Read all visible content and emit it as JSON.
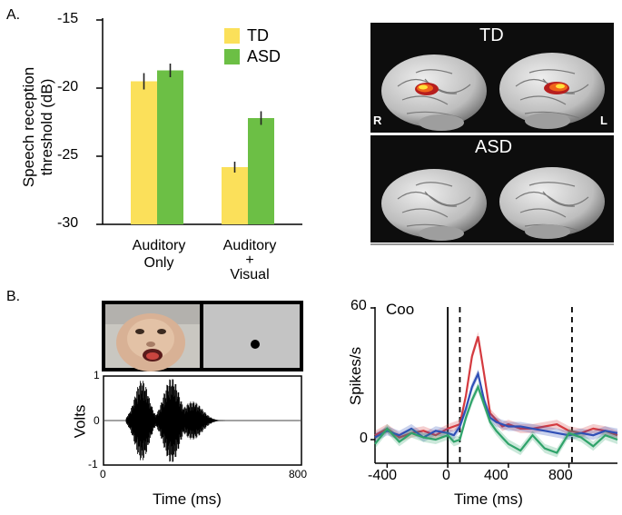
{
  "panelA": {
    "label": "A.",
    "bar_chart": {
      "type": "bar",
      "ylabel_line1": "Speech reception",
      "ylabel_line2": "threshold (dB)",
      "ylim": [
        -30,
        -15
      ],
      "yticks": [
        "-15",
        "-20",
        "-25",
        "-30"
      ],
      "categories": [
        {
          "line1": "Auditory",
          "line2": "Only",
          "line3": ""
        },
        {
          "line1": "Auditory",
          "line2": "+",
          "line3": "Visual"
        }
      ],
      "legend": [
        {
          "name": "TD",
          "color": "#fbe05a"
        },
        {
          "name": "ASD",
          "color": "#6cbf45"
        }
      ]
    },
    "brain_panels": {
      "td_label": "TD",
      "asd_label": "ASD",
      "right_marker": "R",
      "left_marker": "L"
    }
  },
  "panelB": {
    "label": "B.",
    "waveform": {
      "ylabel": "Volts",
      "yticks": [
        "1",
        "0",
        "-1"
      ],
      "xticks": [
        "0",
        "800"
      ],
      "xlabel": "Time (ms)"
    },
    "psth": {
      "title": "Coo",
      "ylabel": "Spikes/s",
      "yticks": [
        "60",
        "0"
      ],
      "xticks": [
        "-400",
        "0",
        "400",
        "800"
      ],
      "xlabel": "Time (ms)"
    }
  },
  "chart_data": [
    {
      "type": "bar",
      "categories": [
        "Auditory Only",
        "Auditory + Visual"
      ],
      "series": [
        {
          "name": "TD",
          "values": [
            -19.5,
            -25.8
          ],
          "errors": [
            0.6,
            0.4
          ]
        },
        {
          "name": "ASD",
          "values": [
            -18.7,
            -22.2
          ],
          "errors": [
            0.5,
            0.5
          ]
        }
      ],
      "xlabel": "",
      "ylabel": "Speech reception threshold (dB)",
      "ylim": [
        -30,
        -15
      ],
      "legend_position": "top-right"
    },
    {
      "type": "line",
      "title": "Coo",
      "xlabel": "Time (ms)",
      "ylabel": "Spikes/s",
      "xlim": [
        -480,
        1120
      ],
      "ylim": [
        -8,
        60
      ],
      "vlines": [
        0,
        80,
        820
      ],
      "series": [
        {
          "color": "#d43a3f",
          "x": [
            -480,
            -400,
            -320,
            -240,
            -160,
            -80,
            0,
            40,
            80,
            120,
            160,
            200,
            240,
            280,
            320,
            360,
            400,
            480,
            560,
            640,
            720,
            800,
            880,
            960,
            1040,
            1120
          ],
          "y": [
            2,
            5,
            1,
            3,
            4,
            2,
            5,
            6,
            7,
            20,
            38,
            47,
            30,
            12,
            9,
            6,
            7,
            5,
            5,
            6,
            7,
            4,
            3,
            5,
            4,
            2
          ]
        },
        {
          "color": "#2f4fb6",
          "x": [
            -480,
            -400,
            -320,
            -240,
            -160,
            -80,
            0,
            40,
            80,
            120,
            160,
            200,
            240,
            280,
            320,
            360,
            400,
            480,
            560,
            640,
            720,
            800,
            880,
            960,
            1040,
            1120
          ],
          "y": [
            1,
            4,
            2,
            5,
            1,
            4,
            3,
            2,
            6,
            14,
            24,
            30,
            18,
            10,
            8,
            7,
            6,
            6,
            5,
            4,
            3,
            2,
            3,
            2,
            4,
            3
          ]
        },
        {
          "color": "#2fa36a",
          "x": [
            -480,
            -400,
            -320,
            -240,
            -160,
            -80,
            0,
            40,
            80,
            120,
            160,
            200,
            240,
            280,
            320,
            360,
            400,
            480,
            560,
            640,
            720,
            800,
            880,
            960,
            1040,
            1120
          ],
          "y": [
            -2,
            5,
            -1,
            3,
            1,
            0,
            2,
            -1,
            0,
            10,
            18,
            24,
            16,
            8,
            4,
            1,
            -2,
            -5,
            2,
            -4,
            -6,
            3,
            1,
            -3,
            2,
            0
          ]
        }
      ]
    },
    {
      "type": "line",
      "xlabel": "Time (ms)",
      "ylabel": "Volts",
      "xlim": [
        0,
        800
      ],
      "ylim": [
        -1,
        1
      ]
    }
  ]
}
